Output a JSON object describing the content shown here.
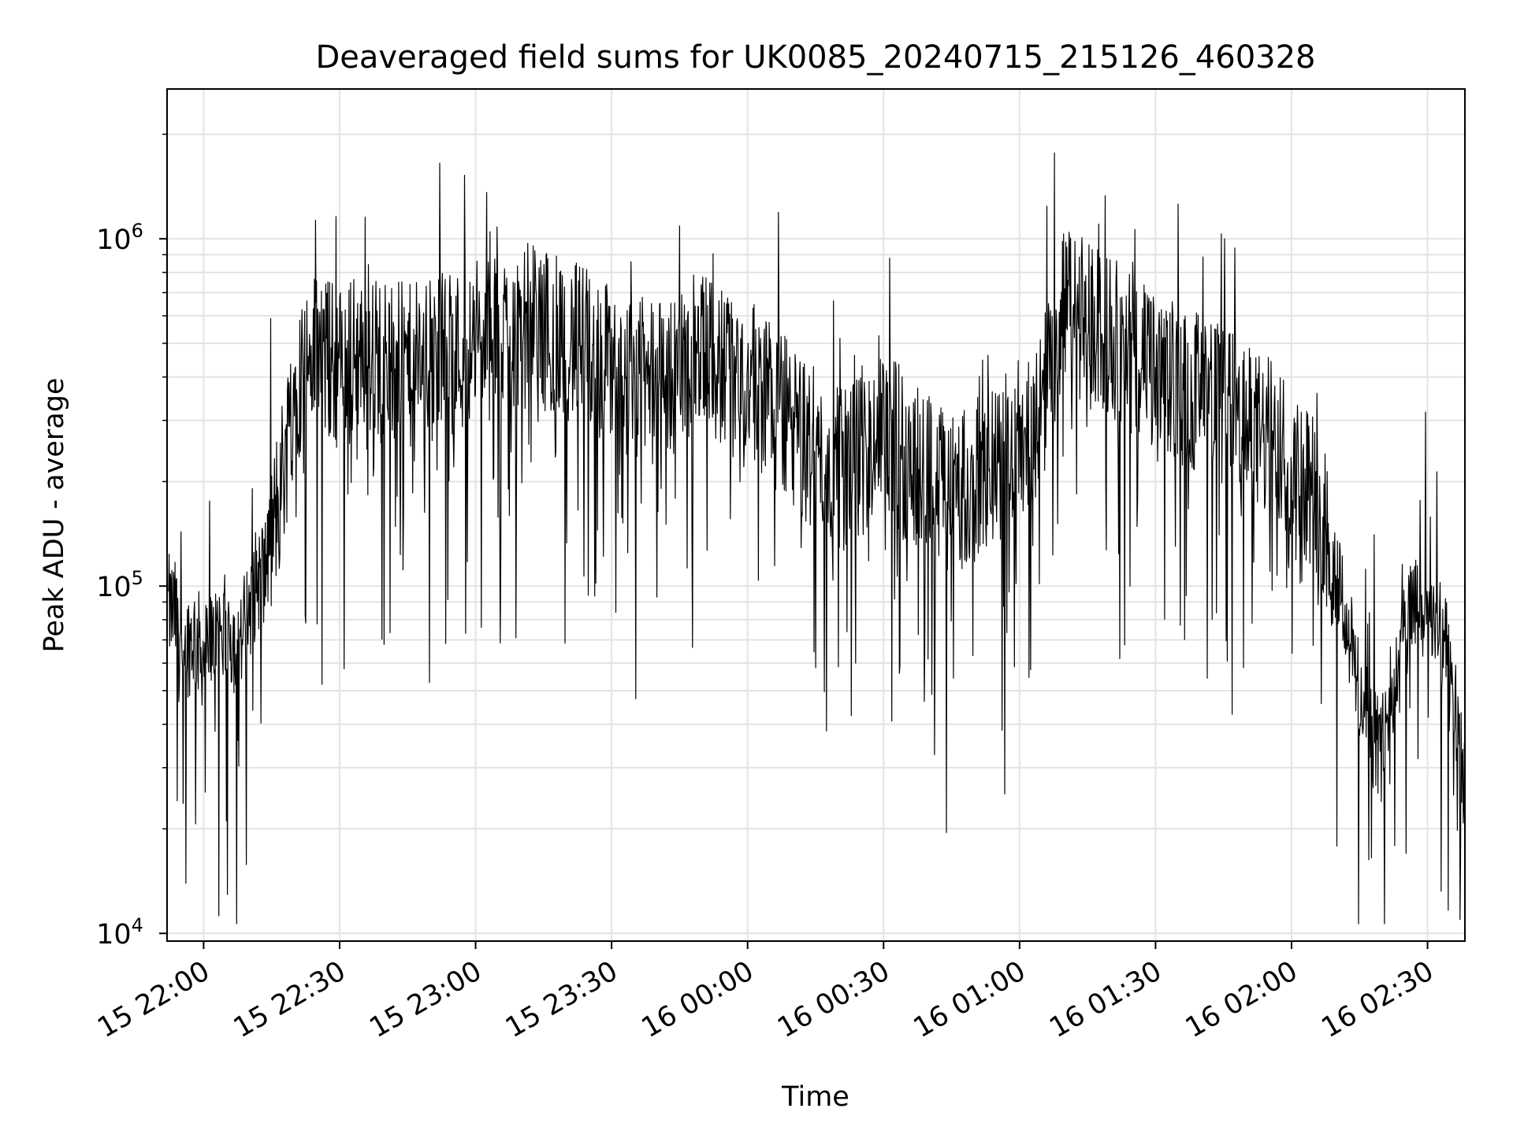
{
  "chart_data": {
    "type": "line",
    "title": "Deaveraged field sums for UK0085_20240715_215126_460328",
    "xlabel": "Time",
    "ylabel": "Peak ADU - average",
    "y_scale": "log",
    "ylim": [
      9500,
      2700000
    ],
    "xlim": [
      "2024-07-15 21:51:56",
      "2024-07-16 02:38:15"
    ],
    "x_ticks": [
      "15 22:00",
      "15 22:30",
      "15 23:00",
      "15 23:30",
      "16 00:00",
      "16 00:30",
      "16 01:00",
      "16 01:30",
      "16 02:00",
      "16 02:30"
    ],
    "y_ticks": [
      {
        "base": "10",
        "exp": "4",
        "value": 10000
      },
      {
        "base": "10",
        "exp": "5",
        "value": 100000
      },
      {
        "base": "10",
        "exp": "6",
        "value": 1000000
      }
    ],
    "grid": true,
    "legend": "none",
    "line_color": "#000000",
    "series": [
      {
        "x": [
          "2024-07-15 21:52",
          "2024-07-15 21:54",
          "2024-07-15 21:56",
          "2024-07-15 21:58",
          "2024-07-15 22:00",
          "2024-07-15 22:02",
          "2024-07-15 22:04",
          "2024-07-15 22:06",
          "2024-07-15 22:08",
          "2024-07-15 22:10",
          "2024-07-15 22:12",
          "2024-07-15 22:14",
          "2024-07-15 22:16",
          "2024-07-15 22:18",
          "2024-07-15 22:20",
          "2024-07-15 22:25",
          "2024-07-15 22:30",
          "2024-07-15 22:35",
          "2024-07-15 22:40",
          "2024-07-15 22:45",
          "2024-07-15 22:50",
          "2024-07-15 22:55",
          "2024-07-15 23:00",
          "2024-07-15 23:05",
          "2024-07-15 23:10",
          "2024-07-15 23:15",
          "2024-07-15 23:20",
          "2024-07-15 23:25",
          "2024-07-15 23:30",
          "2024-07-15 23:35",
          "2024-07-15 23:40",
          "2024-07-15 23:45",
          "2024-07-15 23:50",
          "2024-07-15 23:55",
          "2024-07-16 00:00",
          "2024-07-16 00:05",
          "2024-07-16 00:10",
          "2024-07-16 00:15",
          "2024-07-16 00:20",
          "2024-07-16 00:25",
          "2024-07-16 00:30",
          "2024-07-16 00:35",
          "2024-07-16 00:40",
          "2024-07-16 00:45",
          "2024-07-16 00:50",
          "2024-07-16 00:55",
          "2024-07-16 01:00",
          "2024-07-16 01:05",
          "2024-07-16 01:10",
          "2024-07-16 01:15",
          "2024-07-16 01:20",
          "2024-07-16 01:25",
          "2024-07-16 01:30",
          "2024-07-16 01:35",
          "2024-07-16 01:40",
          "2024-07-16 01:45",
          "2024-07-16 01:50",
          "2024-07-16 01:55",
          "2024-07-16 02:00",
          "2024-07-16 02:05",
          "2024-07-16 02:08",
          "2024-07-16 02:11",
          "2024-07-16 02:14",
          "2024-07-16 02:17",
          "2024-07-16 02:20",
          "2024-07-16 02:23",
          "2024-07-16 02:26",
          "2024-07-16 02:29",
          "2024-07-16 02:32",
          "2024-07-16 02:35",
          "2024-07-16 02:38"
        ],
        "y": [
          90000,
          85000,
          70000,
          75000,
          65000,
          70000,
          80000,
          75000,
          70000,
          90000,
          110000,
          120000,
          170000,
          250000,
          400000,
          500000,
          450000,
          500000,
          480000,
          450000,
          470000,
          500000,
          520000,
          550000,
          600000,
          580000,
          550000,
          500000,
          450000,
          420000,
          400000,
          450000,
          500000,
          450000,
          400000,
          380000,
          300000,
          250000,
          230000,
          250000,
          300000,
          250000,
          220000,
          200000,
          210000,
          230000,
          280000,
          350000,
          700000,
          600000,
          550000,
          500000,
          420000,
          400000,
          380000,
          350000,
          300000,
          280000,
          250000,
          200000,
          150000,
          100000,
          60000,
          40000,
          35000,
          60000,
          85000,
          90000,
          80000,
          60000,
          30000
        ]
      }
    ]
  }
}
